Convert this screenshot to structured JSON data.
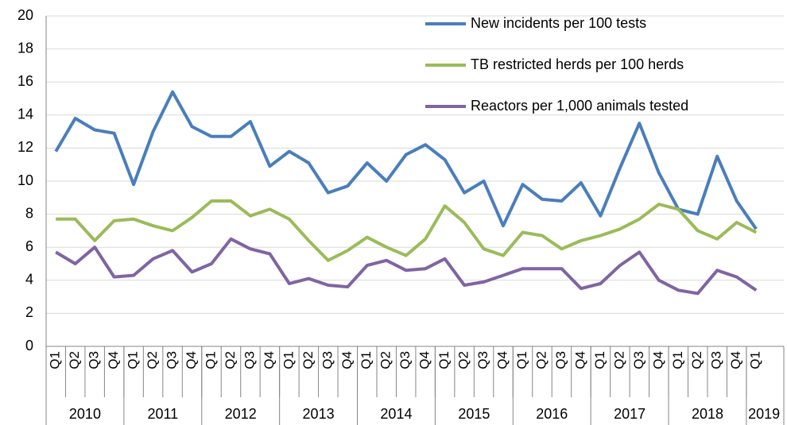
{
  "chart_data": {
    "type": "line",
    "categories": [
      "Q1",
      "Q2",
      "Q3",
      "Q4",
      "Q1",
      "Q2",
      "Q3",
      "Q4",
      "Q1",
      "Q2",
      "Q3",
      "Q4",
      "Q1",
      "Q2",
      "Q3",
      "Q4",
      "Q1",
      "Q2",
      "Q3",
      "Q4",
      "Q1",
      "Q2",
      "Q3",
      "Q4",
      "Q1",
      "Q2",
      "Q3",
      "Q4",
      "Q1",
      "Q2",
      "Q3",
      "Q4",
      "Q1",
      "Q2",
      "Q3",
      "Q4",
      "Q1"
    ],
    "groups": [
      {
        "label": "2010",
        "count": 4
      },
      {
        "label": "2011",
        "count": 4
      },
      {
        "label": "2012",
        "count": 4
      },
      {
        "label": "2013",
        "count": 4
      },
      {
        "label": "2014",
        "count": 4
      },
      {
        "label": "2015",
        "count": 4
      },
      {
        "label": "2016",
        "count": 4
      },
      {
        "label": "2017",
        "count": 4
      },
      {
        "label": "2018",
        "count": 4
      },
      {
        "label": "2019",
        "count": 1
      }
    ],
    "series": [
      {
        "name": "New incidents per 100 tests",
        "color": "#4a7ebb",
        "values": [
          11.8,
          13.8,
          13.1,
          12.9,
          9.8,
          13.0,
          15.4,
          13.3,
          12.7,
          12.7,
          13.6,
          10.9,
          11.8,
          11.1,
          9.3,
          9.7,
          11.1,
          10.0,
          11.6,
          12.2,
          11.3,
          9.3,
          10.0,
          7.3,
          9.8,
          8.9,
          8.8,
          9.9,
          7.9,
          10.8,
          13.5,
          10.5,
          8.3,
          8.0,
          11.5,
          8.8,
          7.1
        ]
      },
      {
        "name": "TB restricted herds per 100 herds",
        "color": "#9bbb59",
        "values": [
          7.7,
          7.7,
          6.4,
          7.6,
          7.7,
          7.3,
          7.0,
          7.8,
          8.8,
          8.8,
          7.9,
          8.3,
          7.7,
          6.4,
          5.2,
          5.8,
          6.6,
          6.0,
          5.5,
          6.5,
          8.5,
          7.5,
          5.9,
          5.5,
          6.9,
          6.7,
          5.9,
          6.4,
          6.7,
          7.1,
          7.7,
          8.6,
          8.3,
          7.0,
          6.5,
          7.5,
          6.9
        ]
      },
      {
        "name": "Reactors per 1,000 animals tested",
        "color": "#8064a2",
        "values": [
          5.7,
          5.0,
          6.0,
          4.2,
          4.3,
          5.3,
          5.8,
          4.5,
          5.0,
          6.5,
          5.9,
          5.6,
          3.8,
          4.1,
          3.7,
          3.6,
          4.9,
          5.2,
          4.6,
          4.7,
          5.3,
          3.7,
          3.9,
          4.3,
          4.7,
          4.7,
          4.7,
          3.5,
          3.8,
          4.9,
          5.7,
          4.0,
          3.4,
          3.2,
          4.6,
          4.2,
          3.4
        ]
      }
    ],
    "ylim": [
      0,
      20
    ],
    "yticks": [
      0,
      2,
      4,
      6,
      8,
      10,
      12,
      14,
      16,
      18,
      20
    ],
    "grid": true,
    "legend": "top-right"
  }
}
